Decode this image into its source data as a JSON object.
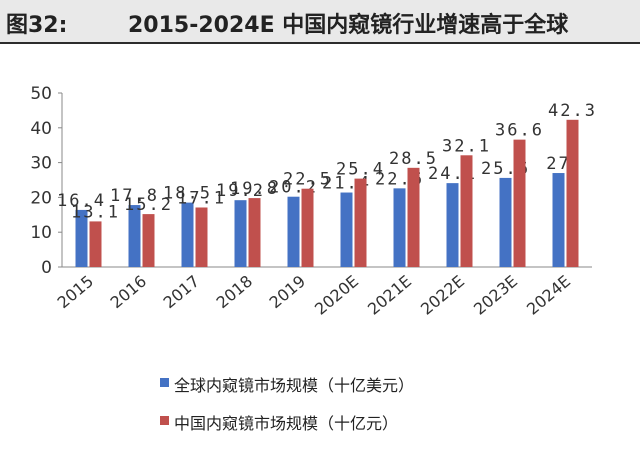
{
  "header": {
    "figure_label": "图32:",
    "title": "2015-2024E 中国内窥镜行业增速高于全球"
  },
  "chart_data": {
    "type": "bar",
    "categories": [
      "2015",
      "2016",
      "2017",
      "2018",
      "2019",
      "2020E",
      "2021E",
      "2022E",
      "2023E",
      "2024E"
    ],
    "series": [
      {
        "name": "全球内窥镜市场规模（十亿美元）",
        "color": "#4472c4",
        "values": [
          16.4,
          17.8,
          18.5,
          19.2,
          20.2,
          21.4,
          22.6,
          24.1,
          25.6,
          27
        ]
      },
      {
        "name": "中国内窥镜市场规模（十亿元）",
        "color": "#c0504d",
        "values": [
          13.1,
          15.2,
          17.1,
          19.8,
          22.5,
          25.4,
          28.5,
          32.1,
          36.6,
          42.3
        ]
      }
    ],
    "value_labels": [
      [
        "16.4",
        "17.8",
        "18.5",
        "19.2",
        "20.2",
        "21.4",
        "22.6",
        "24.1",
        "25.6",
        "27"
      ],
      [
        "13.1",
        "15.2",
        "17.1",
        "19.8",
        "22.5",
        "25.4",
        "28.5",
        "32.1",
        "36.6",
        "42.3"
      ]
    ],
    "ylim": [
      0,
      50
    ],
    "yticks": [
      "0",
      "10",
      "20",
      "30",
      "40",
      "50"
    ],
    "ytick_values": [
      0,
      10,
      20,
      30,
      40,
      50
    ],
    "legend_position": "bottom"
  }
}
